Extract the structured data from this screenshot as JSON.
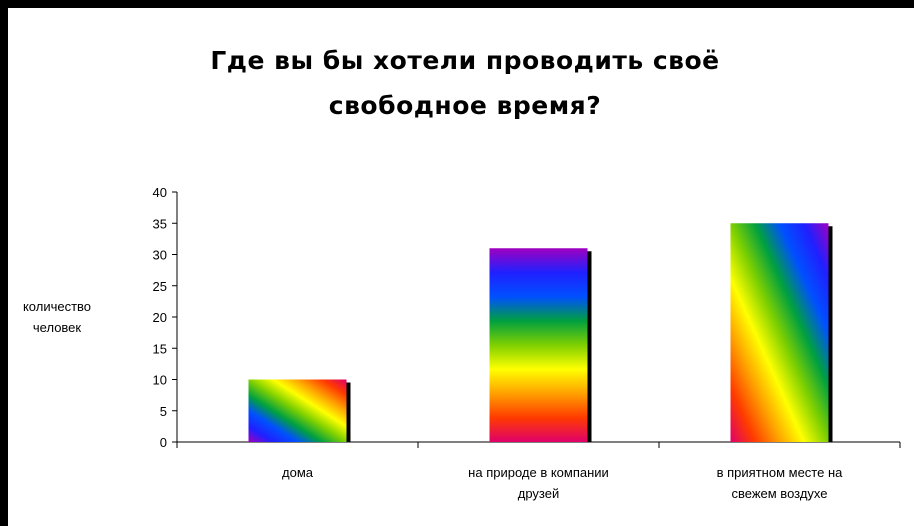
{
  "chart_data": {
    "type": "bar",
    "title": "Где вы бы хотели проводить своё\nсвободное время?",
    "ylabel": [
      "количество",
      "человек"
    ],
    "xlabel": "",
    "categories": [
      [
        "дома"
      ],
      [
        "на природе в компании",
        "друзей"
      ],
      [
        "в приятном месте на",
        "свежем воздухе"
      ]
    ],
    "values": [
      10,
      31,
      35
    ],
    "ylim": [
      0,
      40
    ],
    "yticks": [
      0,
      5,
      10,
      15,
      20,
      25,
      30,
      35,
      40
    ],
    "grid": false,
    "legend": "none",
    "fills": [
      "rainbow-diagonal",
      "rainbow-vertical",
      "rainbow-diagonal-steep"
    ]
  },
  "colors": {
    "rainbow": [
      "#e0006a",
      "#ff3a00",
      "#ffa000",
      "#ffff00",
      "#7fd000",
      "#00a040",
      "#0050ff",
      "#2020ff",
      "#a000c0"
    ]
  }
}
